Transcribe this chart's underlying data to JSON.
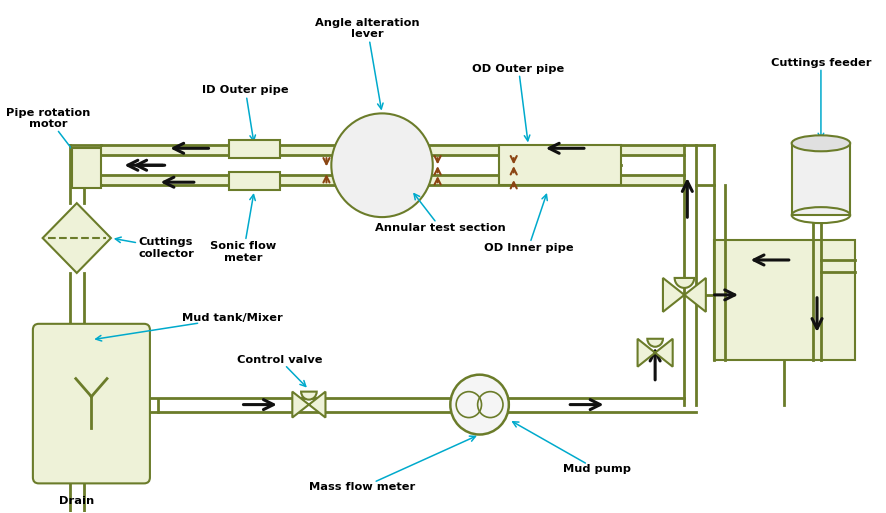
{
  "bg_color": "#ffffff",
  "pipe_color": "#6b7c2a",
  "arrow_color": "#111111",
  "cyan_color": "#00aacc",
  "brown_color": "#8B4513",
  "light_fill": "#eef2d8",
  "edge_color": "#6b7c2a",
  "labels": {
    "pipe_rotation_motor": "Pipe rotation\nmotor",
    "id_outer_pipe": "ID Outer pipe",
    "angle_alteration": "Angle alteration\nlever",
    "od_outer_pipe": "OD Outer pipe",
    "cuttings_feeder": "Cuttings feeder",
    "sonic_flow_meter": "Sonic flow\nmeter",
    "annular_test": "Annular test section",
    "od_inner_pipe": "OD Inner pipe",
    "cuttings_collector": "Cuttings\ncollector",
    "mud_tank": "Mud tank/Mixer",
    "control_valve": "Control valve",
    "mass_flow_meter": "Mass flow meter",
    "mud_pump": "Mud pump",
    "drain": "Drain"
  }
}
